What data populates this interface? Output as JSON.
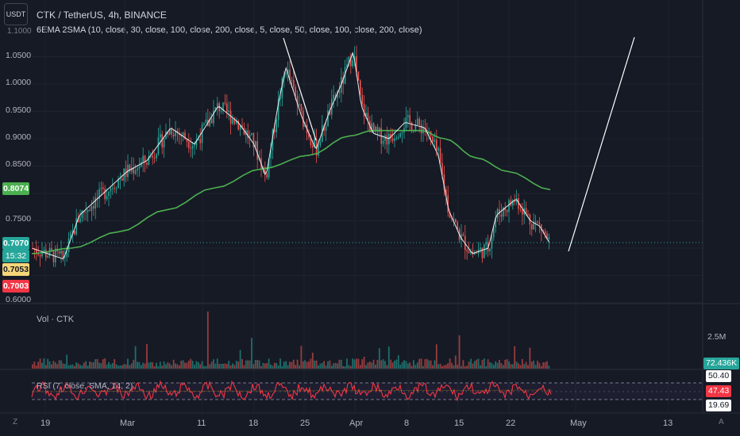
{
  "header": {
    "unit_button": "USDT",
    "title": "CTK / TetherUS, 4h, BINANCE",
    "indicator": "6EMA 2SMA (10, close, 30, close, 100, close, 200, close, 5, close, 50, close, 100, close, 200, close)"
  },
  "colors": {
    "background": "#161a25",
    "up": "#26a69a",
    "down": "#ef5350",
    "sma": "#4caf50",
    "ema": "#ffffff",
    "rsi": "#f23645",
    "trendline": "#ffffff"
  },
  "price_axis": {
    "ticks": [
      "1.0500",
      "1.0000",
      "0.9500",
      "0.9000",
      "0.8500",
      "0.7500",
      "0.6000"
    ],
    "top_partial": "1.1000",
    "tags": {
      "sma_value": "0.8074",
      "last_price": "0.7070",
      "countdown": "15:32",
      "prev_close": "0.7053",
      "low_value": "0.7003"
    }
  },
  "volume_pane": {
    "label": "Vol · CTK",
    "scale_label": "2.5M",
    "value_tag": "72.436K"
  },
  "rsi_pane": {
    "label": "RSI (7, close, SMA, 14, 2)",
    "upper": "50.40",
    "value": "47.43",
    "lower": "19.69"
  },
  "time_axis": {
    "z_button": "Z",
    "a_button": "A",
    "labels": [
      "19",
      "Mar",
      "11",
      "18",
      "25",
      "Apr",
      "8",
      "15",
      "22",
      "May",
      "13"
    ]
  },
  "chart_data": {
    "type": "candlestick",
    "symbol": "CTK / TetherUS",
    "interval": "4h",
    "exchange": "BINANCE",
    "series": [
      {
        "name": "price",
        "x": [
          "19",
          "26",
          "Mar",
          "4",
          "11",
          "18",
          "21",
          "25",
          "28",
          "Apr",
          "3",
          "8",
          "11",
          "15",
          "18",
          "22",
          "25",
          "27"
        ],
        "y": [
          0.7,
          0.76,
          0.84,
          0.87,
          0.95,
          0.92,
          1.03,
          0.96,
          0.9,
          1.05,
          0.96,
          0.92,
          0.9,
          0.72,
          0.7,
          0.77,
          0.76,
          0.707
        ]
      },
      {
        "name": "sma_200",
        "x": [
          "19",
          "Mar",
          "11",
          "18",
          "25",
          "Apr",
          "8",
          "15",
          "22",
          "27"
        ],
        "y": [
          0.69,
          0.74,
          0.8,
          0.85,
          0.875,
          0.915,
          0.915,
          0.88,
          0.835,
          0.807
        ]
      }
    ],
    "ylim": [
      0.6,
      1.1
    ],
    "volume_peak": 2500000,
    "last_volume": 72436,
    "rsi_last": 47.43
  }
}
